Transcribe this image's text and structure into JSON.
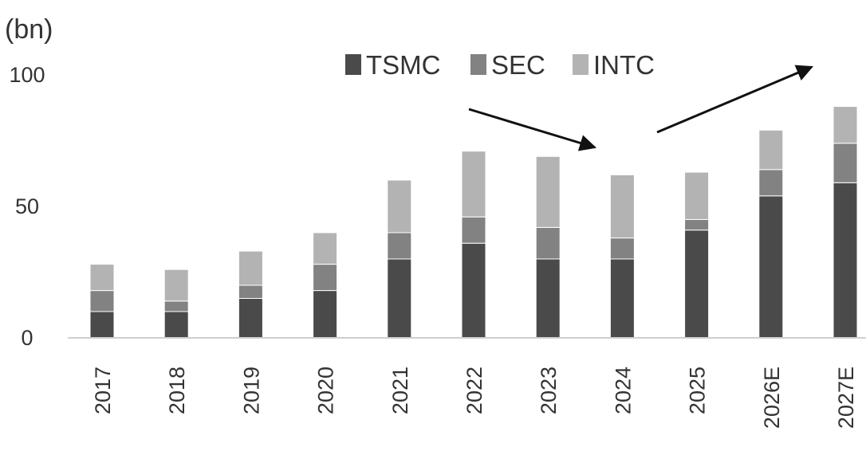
{
  "chart_data": {
    "type": "bar",
    "stacked": true,
    "unit_label": "(bn)",
    "categories": [
      "2017",
      "2018",
      "2019",
      "2020",
      "2021",
      "2022",
      "2023",
      "2024",
      "2025",
      "2026E",
      "2027E"
    ],
    "series": [
      {
        "name": "TSMC",
        "color": "#4a4a4a",
        "values": [
          10,
          10,
          15,
          18,
          30,
          36,
          30,
          30,
          41,
          54,
          59
        ]
      },
      {
        "name": "SEC",
        "color": "#828282",
        "values": [
          8,
          4,
          5,
          10,
          10,
          10,
          12,
          8,
          4,
          10,
          15
        ]
      },
      {
        "name": "INTC",
        "color": "#b3b3b3",
        "values": [
          10,
          12,
          13,
          12,
          20,
          25,
          27,
          24,
          18,
          15,
          14
        ]
      }
    ],
    "y_ticks": [
      "0",
      "50",
      "100"
    ],
    "ylim": [
      0,
      100
    ],
    "grid": false,
    "legend_position": "top-center",
    "annotations": [
      {
        "type": "arrow",
        "direction": "down",
        "from": "2021–2022",
        "to": "2024"
      },
      {
        "type": "arrow",
        "direction": "up",
        "from": "2025",
        "to": "2027E"
      }
    ]
  }
}
